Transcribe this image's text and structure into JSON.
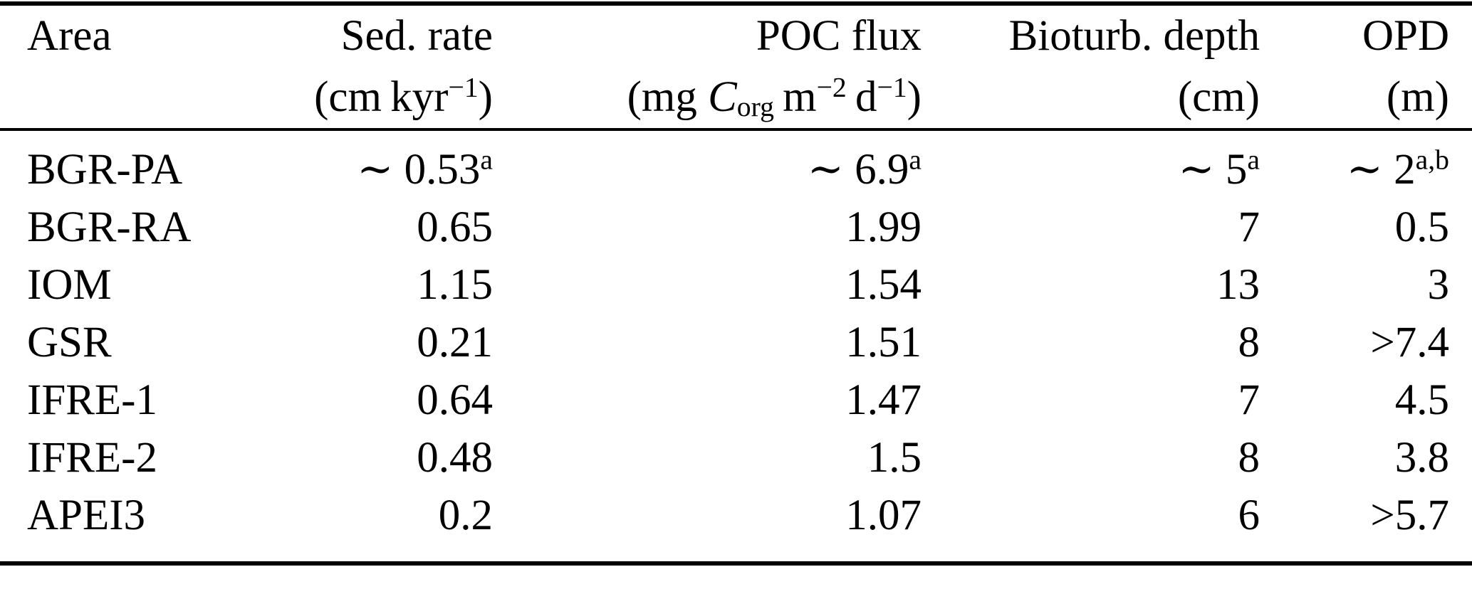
{
  "table": {
    "columns": [
      {
        "id": "area",
        "label": [
          {
            "t": "Area"
          }
        ],
        "unit": []
      },
      {
        "id": "sed-rate",
        "label": [
          {
            "t": "Sed. rate"
          }
        ],
        "unit": [
          {
            "t": "(cm kyr"
          },
          {
            "t": "−1",
            "s": "sup"
          },
          {
            "t": ")"
          }
        ]
      },
      {
        "id": "poc-flux",
        "label": [
          {
            "t": "POC flux"
          }
        ],
        "unit": [
          {
            "t": "(mg "
          },
          {
            "t": "C",
            "s": "i"
          },
          {
            "t": "org",
            "s": "sub"
          },
          {
            "t": " m"
          },
          {
            "t": "−2",
            "s": "sup"
          },
          {
            "t": " d"
          },
          {
            "t": "−1",
            "s": "sup"
          },
          {
            "t": ")"
          }
        ]
      },
      {
        "id": "bioturb-depth",
        "label": [
          {
            "t": "Bioturb. depth"
          }
        ],
        "unit": [
          {
            "t": "(cm)"
          }
        ]
      },
      {
        "id": "opd",
        "label": [
          {
            "t": "OPD"
          }
        ],
        "unit": [
          {
            "t": "(m)"
          }
        ]
      }
    ],
    "rows": [
      [
        [
          {
            "t": "BGR-PA"
          }
        ],
        [
          {
            "t": "∼ 0.53"
          },
          {
            "t": "a",
            "s": "sup"
          }
        ],
        [
          {
            "t": "∼ 6.9"
          },
          {
            "t": "a",
            "s": "sup"
          }
        ],
        [
          {
            "t": "∼ 5"
          },
          {
            "t": "a",
            "s": "sup"
          }
        ],
        [
          {
            "t": "∼ 2"
          },
          {
            "t": "a,b",
            "s": "sup"
          }
        ]
      ],
      [
        [
          {
            "t": "BGR-RA"
          }
        ],
        [
          {
            "t": "0.65"
          }
        ],
        [
          {
            "t": "1.99"
          }
        ],
        [
          {
            "t": "7"
          }
        ],
        [
          {
            "t": "0.5"
          }
        ]
      ],
      [
        [
          {
            "t": "IOM"
          }
        ],
        [
          {
            "t": "1.15"
          }
        ],
        [
          {
            "t": "1.54"
          }
        ],
        [
          {
            "t": "13"
          }
        ],
        [
          {
            "t": "3"
          }
        ]
      ],
      [
        [
          {
            "t": "GSR"
          }
        ],
        [
          {
            "t": "0.21"
          }
        ],
        [
          {
            "t": "1.51"
          }
        ],
        [
          {
            "t": "8"
          }
        ],
        [
          {
            "t": ">7.4"
          }
        ]
      ],
      [
        [
          {
            "t": "IFRE-1"
          }
        ],
        [
          {
            "t": "0.64"
          }
        ],
        [
          {
            "t": "1.47"
          }
        ],
        [
          {
            "t": "7"
          }
        ],
        [
          {
            "t": "4.5"
          }
        ]
      ],
      [
        [
          {
            "t": "IFRE-2"
          }
        ],
        [
          {
            "t": "0.48"
          }
        ],
        [
          {
            "t": "1.5"
          }
        ],
        [
          {
            "t": "8"
          }
        ],
        [
          {
            "t": "3.8"
          }
        ]
      ],
      [
        [
          {
            "t": "APEI3"
          }
        ],
        [
          {
            "t": "0.2"
          }
        ],
        [
          {
            "t": "1.07"
          }
        ],
        [
          {
            "t": "6"
          }
        ],
        [
          {
            "t": ">5.7"
          }
        ]
      ]
    ]
  }
}
